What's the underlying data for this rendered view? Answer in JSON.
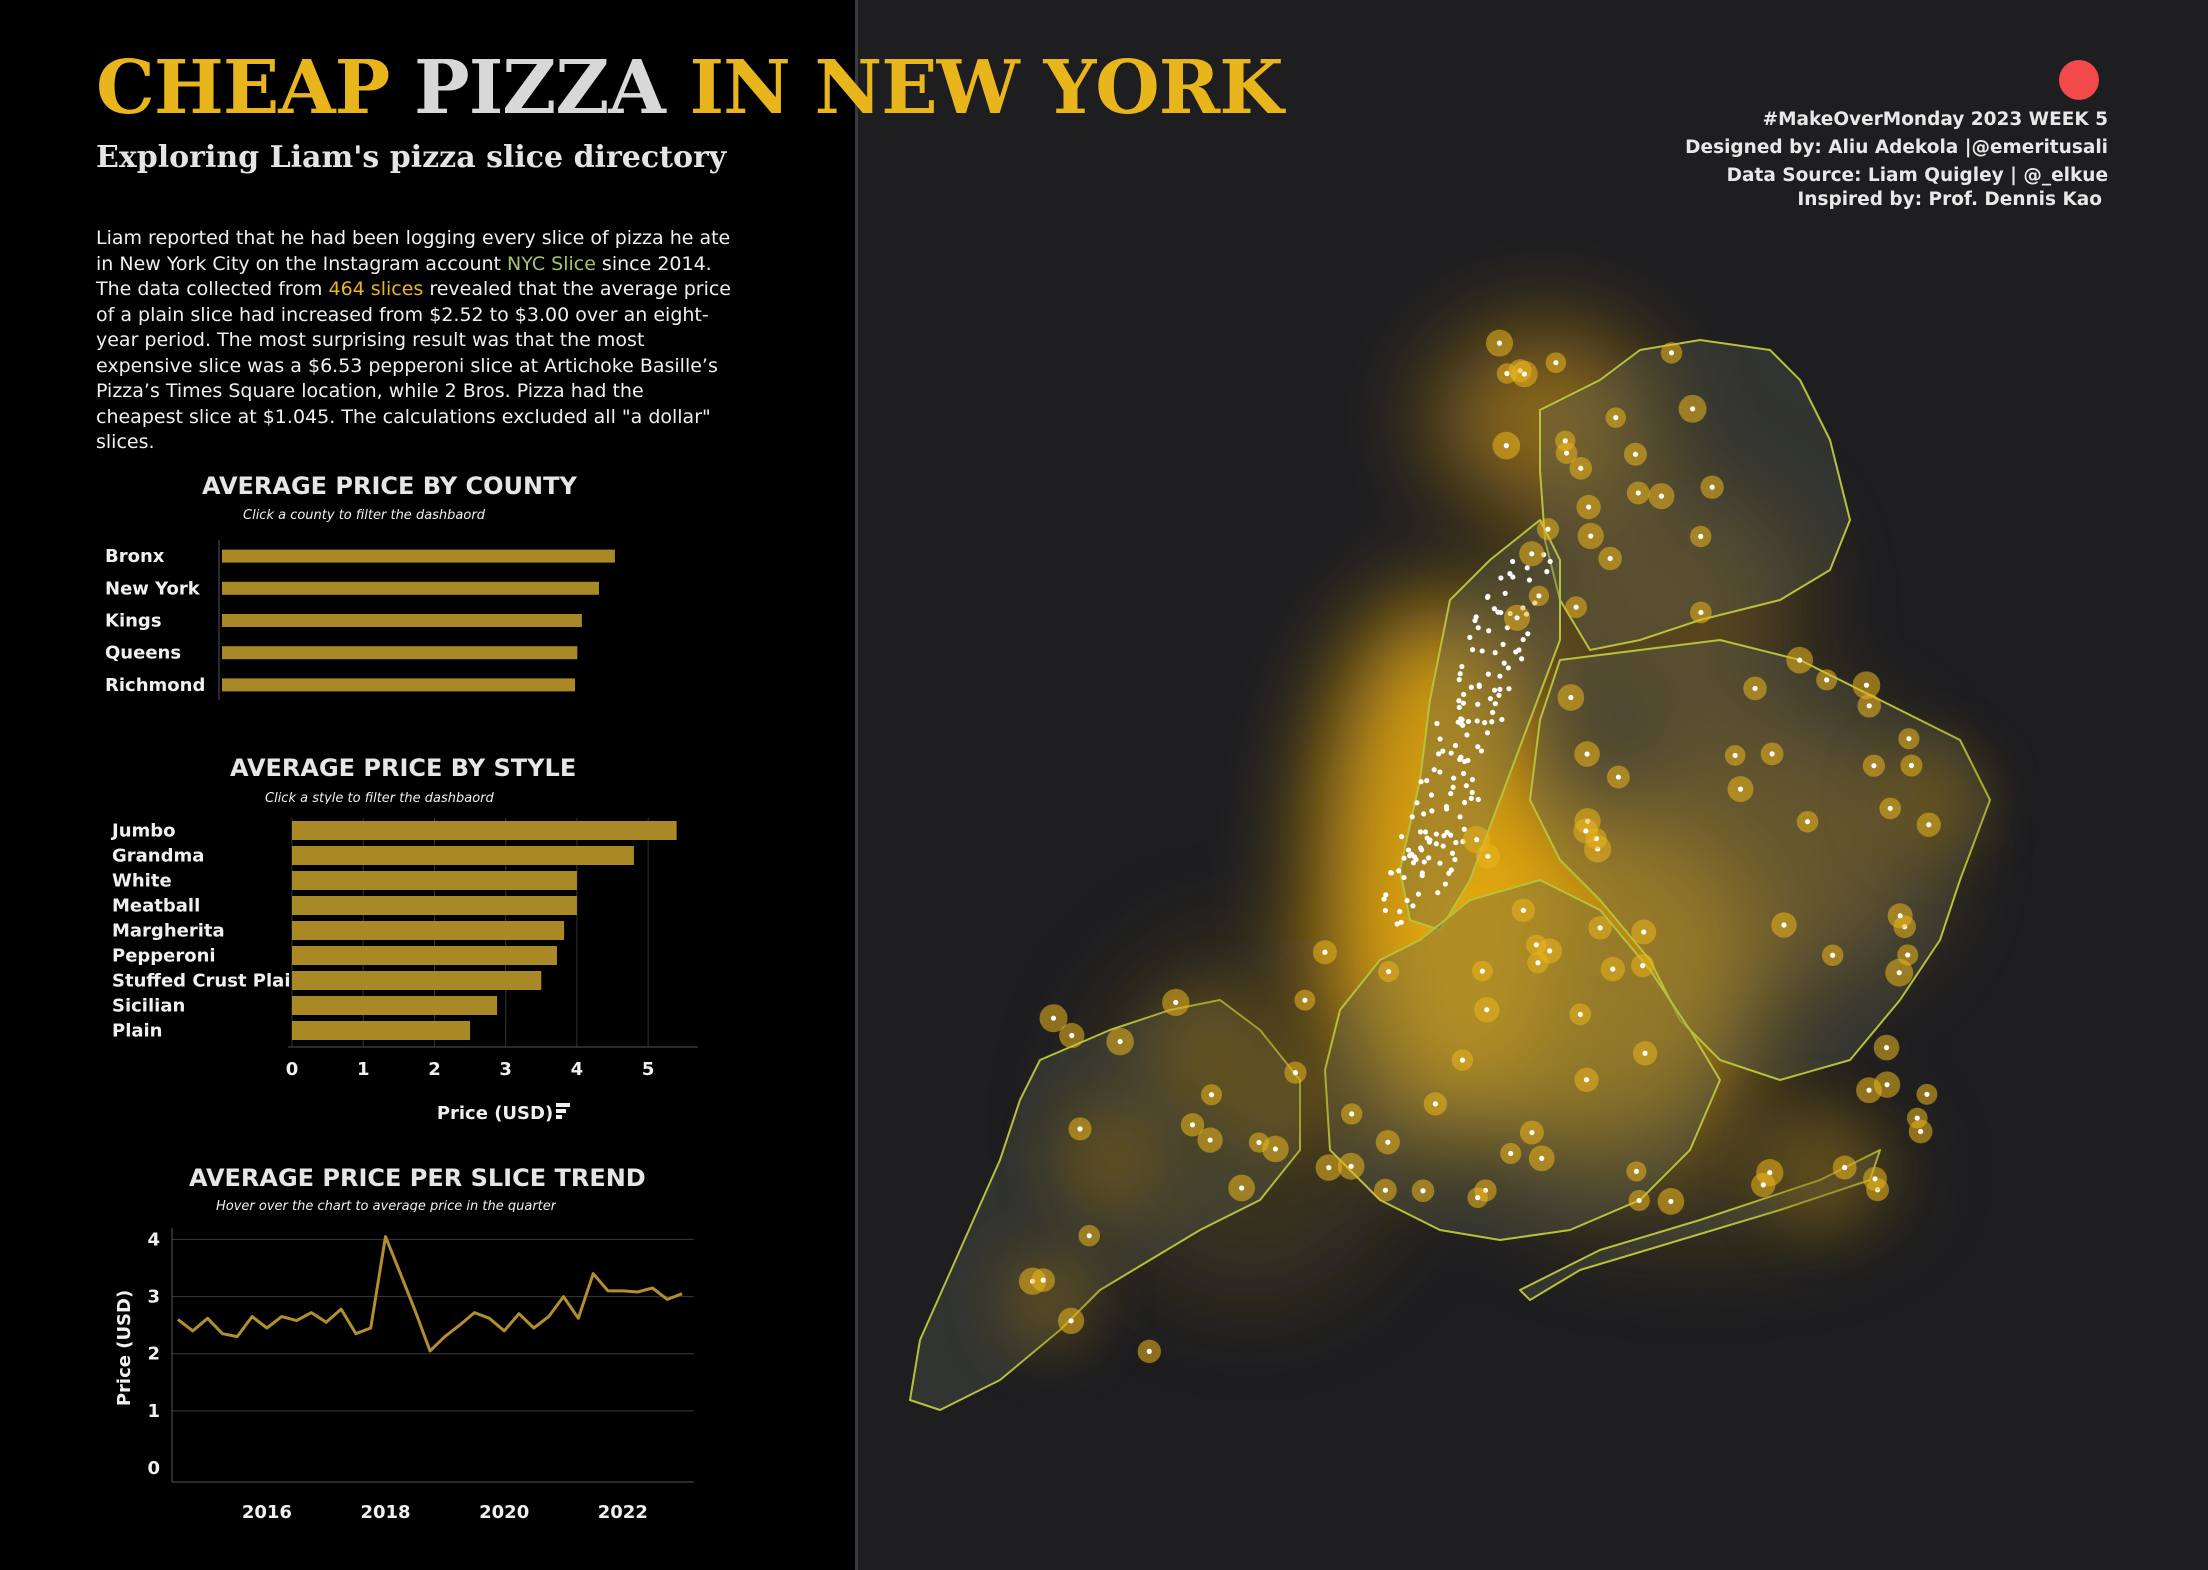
{
  "header": {
    "title_part1": "CHEAP",
    "title_part2": "PIZZA",
    "title_part3": "IN NEW YORK",
    "subtitle": "Exploring Liam's pizza slice directory"
  },
  "intro": {
    "text_a": "Liam reported that he had been logging every slice of pizza he ate in New York City on the Instagram account ",
    "account": "NYC Slice",
    "text_b": " since 2014. The data collected from ",
    "count": "464 slices",
    "text_c": " revealed that the average price of a plain slice had increased from $2.52 to $3.00 over an eight-year period. The most surprising result was that the most expensive slice was a $6.53 pepperoni slice at Artichoke Basille’s Pizza’s Times Square location, while 2 Bros. Pizza had the cheapest slice at $1.045. The calculations excluded all \"a dollar\" slices."
  },
  "credits": {
    "line1": "#MakeOverMonday 2023 WEEK 5",
    "line2": "Designed by: Aliu Adekola |@emeritusali",
    "line3": "Data Source: Liam Quigley | @_elkue",
    "line4": "Inspired by: Prof. Dennis Kao"
  },
  "colors": {
    "accent": "#e9b51d",
    "bar": "#a98826",
    "line": "#b38e2e",
    "left_panel": "#000000",
    "map_background": "#1e1e21",
    "record_dot": "#f24a4a"
  },
  "chart_data": [
    {
      "type": "bar",
      "title": "AVERAGE PRICE BY COUNTY",
      "subtitle": "Click a county to filter the dashbaord",
      "orientation": "horizontal",
      "categories": [
        "Bronx",
        "New York",
        "Kings",
        "Queens",
        "Richmond"
      ],
      "values": [
        3.45,
        3.31,
        3.16,
        3.12,
        3.1
      ],
      "xlim": [
        0,
        3.6
      ]
    },
    {
      "type": "bar",
      "title": "AVERAGE PRICE BY STYLE",
      "subtitle": "Click a style to filter the dashbaord",
      "orientation": "horizontal",
      "categories": [
        "Jumbo",
        "Grandma",
        "White",
        "Meatball",
        "Margherita",
        "Pepperoni",
        "Stuffed Crust Plain",
        "Sicilian",
        "Plain"
      ],
      "values": [
        5.4,
        4.8,
        4.0,
        4.0,
        3.82,
        3.72,
        3.5,
        2.88,
        2.5
      ],
      "xticks": [
        "0",
        "1",
        "2",
        "3",
        "4",
        "5"
      ],
      "xlim": [
        0,
        5.7
      ],
      "xlabel": "Price (USD)",
      "grid": true
    },
    {
      "type": "line",
      "title": "AVERAGE PRICE PER SLICE TREND",
      "subtitle": "Hover over the chart to average price in the quarter",
      "ylabel": "Price (USD)",
      "xlim": [
        2014.4,
        2023.2
      ],
      "ylim": [
        0,
        4.2
      ],
      "xticks": [
        "2016",
        "2018",
        "2020",
        "2022"
      ],
      "yticks": [
        "0",
        "1",
        "2",
        "3",
        "4"
      ],
      "grid": true,
      "x": [
        2014.5,
        2014.75,
        2015.0,
        2015.25,
        2015.5,
        2015.75,
        2016.0,
        2016.25,
        2016.5,
        2016.75,
        2017.0,
        2017.25,
        2017.5,
        2017.75,
        2018.0,
        2018.25,
        2018.5,
        2018.75,
        2019.0,
        2019.25,
        2019.5,
        2019.75,
        2020.0,
        2020.25,
        2020.5,
        2020.75,
        2021.0,
        2021.25,
        2021.5,
        2021.75,
        2022.0,
        2022.25,
        2022.5,
        2022.75,
        2023.0
      ],
      "y": [
        2.6,
        2.4,
        2.62,
        2.35,
        2.3,
        2.65,
        2.45,
        2.65,
        2.58,
        2.72,
        2.55,
        2.78,
        2.35,
        2.45,
        4.05,
        3.4,
        2.75,
        2.05,
        2.3,
        2.5,
        2.72,
        2.62,
        2.4,
        2.7,
        2.45,
        2.65,
        3.0,
        2.62,
        3.4,
        3.1,
        3.1,
        3.08,
        3.15,
        2.95,
        3.05
      ]
    }
  ]
}
